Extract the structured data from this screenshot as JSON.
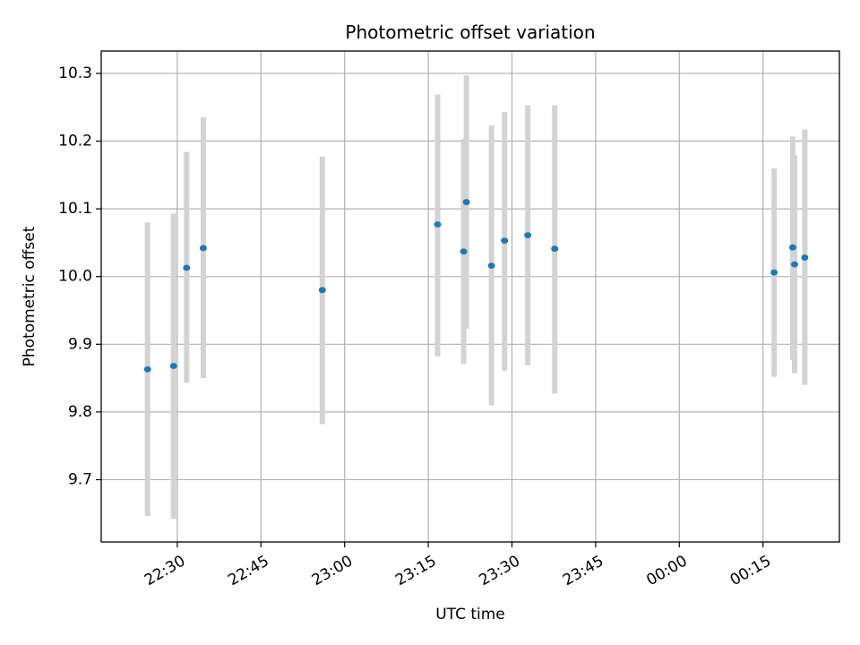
{
  "chart_data": {
    "type": "scatter",
    "title": "Photometric offset variation",
    "xlabel": "UTC time",
    "ylabel": "Photometric offset",
    "grid": true,
    "x_axis": {
      "type": "time",
      "range": [
        "22:16:22",
        "00:28:42"
      ],
      "ticks": [
        {
          "value": "22:30",
          "label": "22:30"
        },
        {
          "value": "22:45",
          "label": "22:45"
        },
        {
          "value": "23:00",
          "label": "23:00"
        },
        {
          "value": "23:15",
          "label": "23:15"
        },
        {
          "value": "23:30",
          "label": "23:30"
        },
        {
          "value": "23:45",
          "label": "23:45"
        },
        {
          "value": "00:00",
          "label": "00:00"
        },
        {
          "value": "00:15",
          "label": "00:15"
        }
      ]
    },
    "y_axis": {
      "range": [
        9.608,
        10.333
      ],
      "ticks": [
        {
          "value": 9.7,
          "label": "9.7"
        },
        {
          "value": 9.8,
          "label": "9.8"
        },
        {
          "value": 9.9,
          "label": "9.9"
        },
        {
          "value": 10.0,
          "label": "10.0"
        },
        {
          "value": 10.1,
          "label": "10.1"
        },
        {
          "value": 10.2,
          "label": "10.2"
        },
        {
          "value": 10.3,
          "label": "10.3"
        }
      ]
    },
    "points": [
      {
        "t": "22:24:40",
        "y": 9.863,
        "lo": 9.646,
        "hi": 10.08
      },
      {
        "t": "22:29:20",
        "y": 9.868,
        "lo": 9.642,
        "hi": 10.093
      },
      {
        "t": "22:31:40",
        "y": 10.013,
        "lo": 9.843,
        "hi": 10.184
      },
      {
        "t": "22:34:40",
        "y": 10.042,
        "lo": 9.85,
        "hi": 10.235
      },
      {
        "t": "22:56:00",
        "y": 9.98,
        "lo": 9.782,
        "hi": 10.177
      },
      {
        "t": "23:16:40",
        "y": 10.077,
        "lo": 9.882,
        "hi": 10.269
      },
      {
        "t": "23:21:20",
        "y": 10.037,
        "lo": 9.871,
        "hi": 10.203
      },
      {
        "t": "23:21:50",
        "y": 10.11,
        "lo": 9.923,
        "hi": 10.297
      },
      {
        "t": "23:26:20",
        "y": 10.016,
        "lo": 9.81,
        "hi": 10.223
      },
      {
        "t": "23:28:40",
        "y": 10.053,
        "lo": 9.861,
        "hi": 10.243
      },
      {
        "t": "23:32:50",
        "y": 10.061,
        "lo": 9.869,
        "hi": 10.253
      },
      {
        "t": "23:37:40",
        "y": 10.041,
        "lo": 9.827,
        "hi": 10.253
      },
      {
        "t": "00:17:00",
        "y": 10.006,
        "lo": 9.852,
        "hi": 10.16
      },
      {
        "t": "00:20:20",
        "y": 10.043,
        "lo": 9.877,
        "hi": 10.207
      },
      {
        "t": "00:20:40",
        "y": 10.018,
        "lo": 9.857,
        "hi": 10.179
      },
      {
        "t": "00:22:30",
        "y": 10.028,
        "lo": 9.84,
        "hi": 10.217
      }
    ],
    "colors": {
      "marker": "#1f77b4",
      "errorbar": "#d3d3d3",
      "grid": "#b0b0b0"
    }
  }
}
